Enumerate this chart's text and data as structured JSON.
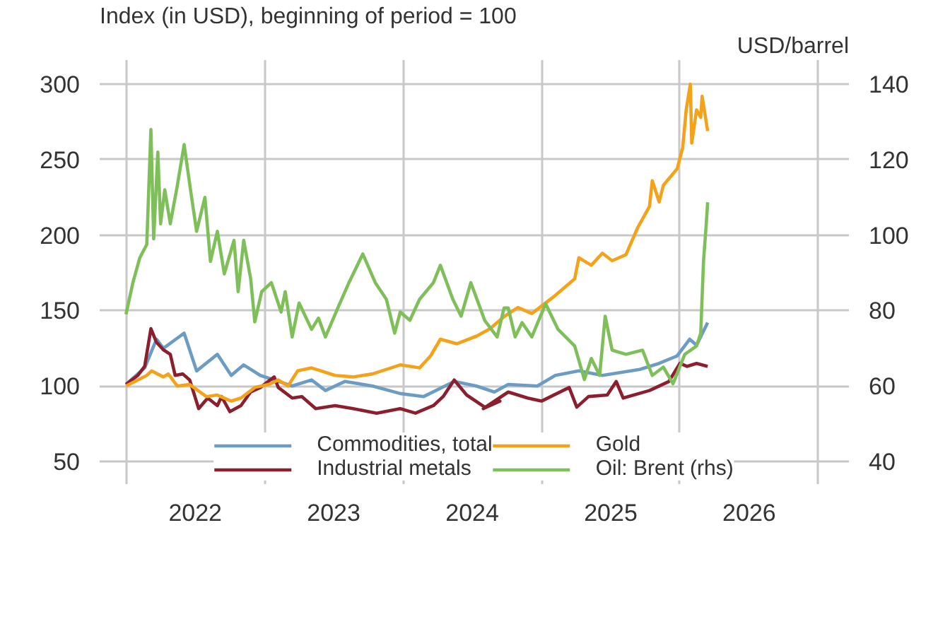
{
  "chart_data": {
    "type": "line",
    "ylabel": "Index (in USD), beginning of period = 100",
    "y2label": "USD/barrel",
    "xlim": [
      2021.81,
      2027.22
    ],
    "xticks": [
      {
        "value": 2022,
        "label": null
      },
      {
        "value": 2022.5,
        "label": "2022"
      },
      {
        "value": 2023,
        "label": null
      },
      {
        "value": 2023.5,
        "label": "2023"
      },
      {
        "value": 2024,
        "label": null
      },
      {
        "value": 2024.5,
        "label": "2024"
      },
      {
        "value": 2025,
        "label": null
      },
      {
        "value": 2025.5,
        "label": "2025"
      },
      {
        "value": 2026,
        "label": null
      },
      {
        "value": 2026.5,
        "label": "2026"
      },
      {
        "value": 2027,
        "label": null
      }
    ],
    "ylim": [
      35,
      316
    ],
    "yticks": [
      50,
      100,
      150,
      200,
      250,
      300
    ],
    "y2lim": [
      34,
      146.4
    ],
    "y2ticks": [
      40,
      60,
      80,
      100,
      120,
      140
    ],
    "grid": true,
    "legend": "bottom",
    "line_style": "solid",
    "marker": "none",
    "series": [
      {
        "name": "Commodities, total",
        "color": "#6c9bc3",
        "x": [
          2022.0,
          2022.135,
          2022.22,
          2022.27,
          2022.42,
          2022.51,
          2022.66,
          2022.76,
          2022.85,
          2022.97,
          2023.07,
          2023.2,
          2023.34,
          2023.44,
          2023.58,
          2023.78,
          2023.98,
          2024.15,
          2024.37,
          2024.53,
          2024.66,
          2024.76,
          2024.97,
          2025.1,
          2025.27,
          2025.44,
          2025.71,
          2025.85,
          2025.98,
          2026.07,
          2026.12,
          2026.2
        ],
        "values": [
          101,
          112,
          131,
          125,
          135,
          110,
          121,
          107,
          114,
          107,
          104,
          100,
          104,
          97,
          103,
          100,
          95,
          93,
          103,
          100,
          96,
          101,
          100,
          107,
          110,
          107,
          111,
          115,
          120,
          131,
          127,
          142
        ]
      },
      {
        "name": "Industrial metals",
        "color": "#8b1f2e",
        "x": [
          2022.0,
          2022.085,
          2022.135,
          2022.18,
          2022.22,
          2022.27,
          2022.32,
          2022.355,
          2022.41,
          2022.46,
          2022.525,
          2022.59,
          2022.66,
          2022.69,
          2022.75,
          2022.83,
          2022.9,
          2022.97,
          2023.07,
          2023.1,
          2023.2,
          2023.27,
          2023.37,
          2023.51,
          2023.64,
          2023.81,
          2023.98,
          2024.09,
          2024.22,
          2024.29,
          2024.37,
          2024.46,
          2024.59,
          2024.7,
          2024.58,
          2024.76,
          2024.9,
          2025.0,
          2025.2,
          2025.255,
          2025.34,
          2025.475,
          2025.54,
          2025.59,
          2025.78,
          2025.92,
          2026.0,
          2026.05,
          2026.12,
          2026.2
        ],
        "values": [
          101,
          107,
          113,
          138,
          129,
          124,
          121,
          107,
          108,
          104,
          85,
          92,
          87,
          93,
          83,
          87,
          96,
          99,
          106,
          99,
          92,
          93,
          85,
          87,
          85,
          82,
          85,
          82,
          87,
          93,
          104,
          94,
          86,
          90,
          85,
          96,
          92,
          90,
          99,
          86,
          93,
          94,
          103,
          92,
          97,
          103,
          115,
          113,
          115,
          113
        ]
      },
      {
        "name": "Gold",
        "color": "#f5a21b",
        "x": [
          2022.0,
          2022.15,
          2022.185,
          2022.27,
          2022.305,
          2022.37,
          2022.46,
          2022.58,
          2022.66,
          2022.76,
          2022.83,
          2022.93,
          2023.03,
          2023.1,
          2023.17,
          2023.24,
          2023.34,
          2023.51,
          2023.64,
          2023.78,
          2023.98,
          2024.12,
          2024.2,
          2024.27,
          2024.39,
          2024.53,
          2024.63,
          2024.73,
          2024.83,
          2024.93,
          2025.1,
          2025.24,
          2025.27,
          2025.36,
          2025.44,
          2025.51,
          2025.61,
          2025.695,
          2025.78,
          2025.8,
          2025.85,
          2025.88,
          2025.98,
          2026.02,
          2026.045,
          2026.075,
          2026.085,
          2026.12,
          2026.15,
          2026.16,
          2026.2
        ],
        "values": [
          100,
          107,
          110,
          106,
          108,
          100,
          101,
          93,
          94,
          90,
          92,
          99,
          101,
          104,
          100,
          110,
          112,
          107,
          106,
          108,
          114,
          112,
          120,
          131,
          128,
          133,
          138,
          146,
          152,
          148,
          160,
          171,
          185,
          180,
          188,
          183,
          187,
          205,
          219,
          236,
          222,
          233,
          244,
          258,
          283,
          300,
          261,
          283,
          278,
          292,
          269
        ]
      },
      {
        "name": "Oil: Brent (rhs)",
        "color": "#7fbf5a",
        "axis": "y2",
        "x": [
          2022.0,
          2022.05,
          2022.1,
          2022.15,
          2022.18,
          2022.2,
          2022.23,
          2022.25,
          2022.28,
          2022.32,
          2022.37,
          2022.42,
          2022.47,
          2022.51,
          2022.57,
          2022.61,
          2022.66,
          2022.71,
          2022.78,
          2022.81,
          2022.85,
          2022.9,
          2022.93,
          2022.98,
          2023.05,
          2023.12,
          2023.15,
          2023.2,
          2023.25,
          2023.34,
          2023.39,
          2023.44,
          2023.53,
          2023.61,
          2023.71,
          2023.8,
          2023.88,
          2023.94,
          2023.98,
          2024.05,
          2024.12,
          2024.22,
          2024.27,
          2024.36,
          2024.42,
          2024.49,
          2024.59,
          2024.68,
          2024.73,
          2024.76,
          2024.81,
          2024.86,
          2024.93,
          2025.03,
          2025.12,
          2025.24,
          2025.31,
          2025.36,
          2025.42,
          2025.46,
          2025.51,
          2025.61,
          2025.73,
          2025.8,
          2025.88,
          2025.95,
          2026.035,
          2026.12,
          2026.15,
          2026.17,
          2026.19,
          2026.2
        ],
        "values": [
          79,
          87.4,
          94,
          97.5,
          128,
          99,
          122,
          103,
          112,
          103,
          113,
          124,
          111,
          101,
          110,
          93,
          101,
          89.7,
          98.6,
          85,
          98.6,
          88.5,
          77,
          85,
          87.4,
          79.6,
          85,
          73,
          82,
          75,
          78,
          73,
          80.7,
          87.4,
          95,
          87.4,
          83,
          74,
          79.6,
          77.4,
          83,
          87.4,
          92,
          83,
          78.5,
          87.4,
          77.4,
          73,
          80.7,
          80.7,
          73,
          76.8,
          73,
          81.8,
          75,
          70.6,
          61.7,
          67.3,
          62.8,
          78.5,
          69.5,
          68.4,
          69.5,
          62.8,
          65,
          60.6,
          68.4,
          70.6,
          74,
          93,
          103,
          108.7
        ]
      }
    ]
  }
}
